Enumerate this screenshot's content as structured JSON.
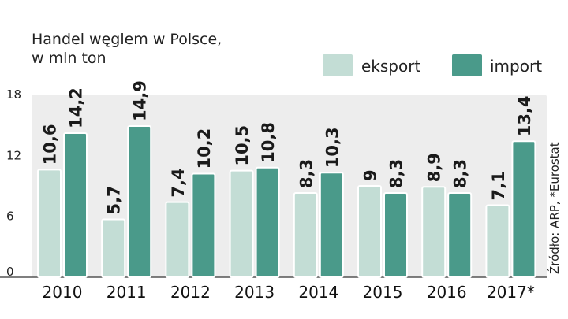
{
  "chart_data": {
    "type": "bar",
    "title": "Handel węglem w Polsce,",
    "subtitle": "w mln ton",
    "categories": [
      "2010",
      "2011",
      "2012",
      "2013",
      "2014",
      "2015",
      "2016",
      "2017*"
    ],
    "series": [
      {
        "name": "eksport",
        "values": [
          10.6,
          5.7,
          7.4,
          10.5,
          8.3,
          9,
          8.9,
          7.1
        ],
        "labels": [
          "10,6",
          "5,7",
          "7,4",
          "10,5",
          "8,3",
          "9",
          "8,9",
          "7,1"
        ],
        "color": "#c3ddd5"
      },
      {
        "name": "import",
        "values": [
          14.2,
          14.9,
          10.2,
          10.8,
          10.3,
          8.3,
          8.3,
          13.4
        ],
        "labels": [
          "14,2",
          "14,9",
          "10,2",
          "10,8",
          "10,3",
          "8,3",
          "8,3",
          "13,4"
        ],
        "color": "#4a9a8a"
      }
    ],
    "yticks": [
      "0",
      "6",
      "12",
      "18"
    ],
    "ylim": [
      0,
      18
    ],
    "grid": false,
    "legend": "top-right",
    "source": "Źródło: ARP, *Eurostat",
    "colors": {
      "plot_background": "#ededed",
      "bar_outline": "#ffffff"
    }
  }
}
